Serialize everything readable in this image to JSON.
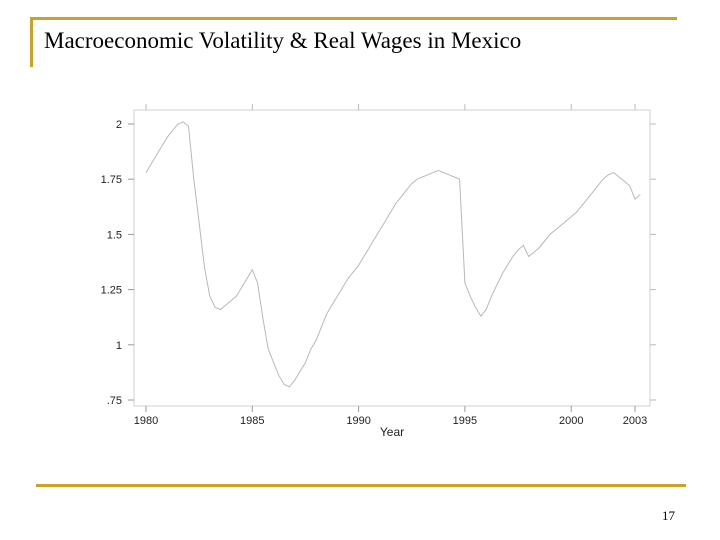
{
  "slide": {
    "title": "Macroeconomic Volatility & Real Wages in Mexico",
    "page_number": "17",
    "accent_color": "#c9a227"
  },
  "chart_data": {
    "type": "line",
    "title": "",
    "xlabel": "Year",
    "ylabel": "",
    "xlim": [
      1980,
      2003
    ],
    "ylim": [
      0.75,
      2
    ],
    "x_ticks": [
      1980,
      1985,
      1990,
      1995,
      2000,
      2003
    ],
    "x_tick_labels": [
      "1980",
      "1985",
      "1990",
      "1995",
      "2000",
      "2003"
    ],
    "y_ticks": [
      0.75,
      1,
      1.25,
      1.5,
      1.75,
      2
    ],
    "y_tick_labels": [
      ".75",
      "1",
      "1.25",
      "1.5",
      "1.75",
      "2"
    ],
    "grid": false,
    "line_color": "#b8b8b8",
    "series": [
      {
        "x": [
          1980.0,
          1980.25,
          1980.5,
          1980.75,
          1981.0,
          1981.25,
          1981.5,
          1981.75,
          1982.0,
          1982.25,
          1982.5,
          1982.75,
          1983.0,
          1983.25,
          1983.5,
          1983.75,
          1984.0,
          1984.25,
          1984.5,
          1984.75,
          1985.0,
          1985.25,
          1985.5,
          1985.75,
          1986.0,
          1986.25,
          1986.5,
          1986.75,
          1987.0,
          1987.25,
          1987.5,
          1987.75,
          1988.0,
          1988.25,
          1988.5,
          1988.75,
          1989.0,
          1989.25,
          1989.5,
          1989.75,
          1990.0,
          1990.25,
          1990.5,
          1990.75,
          1991.0,
          1991.25,
          1991.5,
          1991.75,
          1992.0,
          1992.25,
          1992.5,
          1992.75,
          1993.0,
          1993.25,
          1993.5,
          1993.75,
          1994.0,
          1994.25,
          1994.5,
          1994.75,
          1995.0,
          1995.25,
          1995.5,
          1995.75,
          1996.0,
          1996.25,
          1996.5,
          1996.75,
          1997.0,
          1997.25,
          1997.5,
          1997.75,
          1998.0,
          1998.25,
          1998.5,
          1998.75,
          1999.0,
          1999.25,
          1999.5,
          1999.75,
          2000.0,
          2000.25,
          2000.5,
          2000.75,
          2001.0,
          2001.25,
          2001.5,
          2001.75,
          2002.0,
          2002.25,
          2002.5,
          2002.75,
          2003.0,
          2003.25
        ],
        "y": [
          1.78,
          1.82,
          1.86,
          1.9,
          1.94,
          1.97,
          2.0,
          2.01,
          1.99,
          1.75,
          1.55,
          1.35,
          1.22,
          1.17,
          1.16,
          1.18,
          1.2,
          1.22,
          1.26,
          1.3,
          1.34,
          1.28,
          1.12,
          0.98,
          0.92,
          0.86,
          0.82,
          0.81,
          0.84,
          0.88,
          0.92,
          0.98,
          1.02,
          1.08,
          1.14,
          1.18,
          1.22,
          1.26,
          1.3,
          1.33,
          1.36,
          1.4,
          1.44,
          1.48,
          1.52,
          1.56,
          1.6,
          1.64,
          1.67,
          1.7,
          1.73,
          1.75,
          1.76,
          1.77,
          1.78,
          1.79,
          1.78,
          1.77,
          1.76,
          1.75,
          1.28,
          1.22,
          1.17,
          1.13,
          1.16,
          1.22,
          1.27,
          1.32,
          1.36,
          1.4,
          1.43,
          1.45,
          1.4,
          1.42,
          1.44,
          1.47,
          1.5,
          1.52,
          1.54,
          1.56,
          1.58,
          1.6,
          1.63,
          1.66,
          1.69,
          1.72,
          1.75,
          1.77,
          1.78,
          1.76,
          1.74,
          1.72,
          1.66,
          1.68
        ]
      }
    ]
  }
}
